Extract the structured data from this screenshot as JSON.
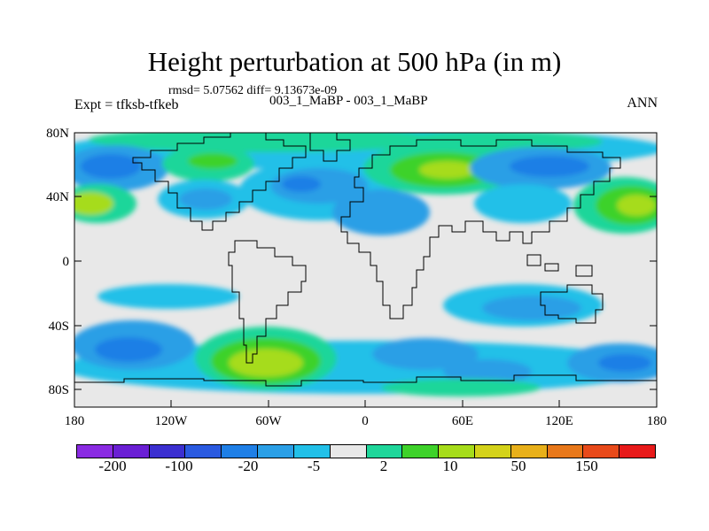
{
  "title": "Height perturbation at 500 hPa (in m)",
  "stats": "rmsd= 5.07562 diff= 9.13673e-09",
  "expt": "Expt = tfksb-tfkeb",
  "case": "003_1_MaBP - 003_1_MaBP",
  "season": "ANN",
  "lat_labels": [
    "80N",
    "40N",
    "0",
    "40S",
    "80S"
  ],
  "lon_labels": [
    "180",
    "120W",
    "60W",
    "0",
    "60E",
    "120E",
    "180"
  ],
  "colorbar": {
    "colors": [
      "#8a2be2",
      "#6a1fd4",
      "#3b2fd0",
      "#2a5ae0",
      "#1f7fe6",
      "#2b9fe6",
      "#22c0e8",
      "#e8e8e8",
      "#1fd69a",
      "#3ed22a",
      "#a6dc1a",
      "#d4d21a",
      "#e8b01a",
      "#e8781a",
      "#e84a1a",
      "#e81a1a"
    ],
    "labels": [
      "-200",
      "-100",
      "-20",
      "-5",
      "2",
      "10",
      "50",
      "150"
    ]
  },
  "palette": {
    "neutral": "#e8e8e8",
    "light_blue": "#22c0e8",
    "mid_blue": "#2b9fe6",
    "blue": "#1f7fe6",
    "green_teal": "#1fd69a",
    "green": "#3ed22a",
    "yellow_green": "#a6dc1a"
  }
}
